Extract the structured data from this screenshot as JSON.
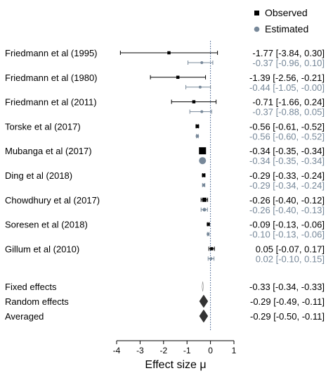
{
  "legend": {
    "observed_label": "Observed",
    "estimated_label": "Estimated",
    "placement": "top-right",
    "observed_color": "#000000",
    "estimated_color": "#778899"
  },
  "chart_data": {
    "type": "forest",
    "xlabel": "Effect size μ",
    "xlim": [
      -4,
      1
    ],
    "x_ticks": [
      -4,
      -3,
      -2,
      -1,
      0,
      1
    ],
    "reference_line_x": 0,
    "reference_line_style": "dotted",
    "grid": false,
    "studies": [
      {
        "label": "Friedmann et al (1995)",
        "observed": {
          "value": -1.77,
          "lower": -3.84,
          "upper": 0.3,
          "text": "-1.77 [-3.84, 0.30]"
        },
        "estimated": {
          "value": -0.37,
          "lower": -0.96,
          "upper": 0.1,
          "text": "-0.37 [-0.96, 0.10]"
        }
      },
      {
        "label": "Friedmann et al (1980)",
        "observed": {
          "value": -1.39,
          "lower": -2.56,
          "upper": -0.21,
          "text": "-1.39 [-2.56, -0.21]"
        },
        "estimated": {
          "value": -0.44,
          "lower": -1.05,
          "upper": -0.0,
          "text": "-0.44 [-1.05, -0.00]"
        }
      },
      {
        "label": "Friedmann et al (2011)",
        "observed": {
          "value": -0.71,
          "lower": -1.66,
          "upper": 0.24,
          "text": "-0.71 [-1.66, 0.24]"
        },
        "estimated": {
          "value": -0.37,
          "lower": -0.88,
          "upper": 0.05,
          "text": "-0.37 [-0.88, 0.05]"
        }
      },
      {
        "label": "Torske et al (2017)",
        "observed": {
          "value": -0.56,
          "lower": -0.61,
          "upper": -0.52,
          "text": "-0.56 [-0.61, -0.52]"
        },
        "estimated": {
          "value": -0.56,
          "lower": -0.6,
          "upper": -0.52,
          "text": "-0.56 [-0.60, -0.52]"
        }
      },
      {
        "label": "Mubanga et al (2017)",
        "observed": {
          "value": -0.34,
          "lower": -0.35,
          "upper": -0.34,
          "text": "-0.34 [-0.35, -0.34]"
        },
        "estimated": {
          "value": -0.34,
          "lower": -0.35,
          "upper": -0.34,
          "text": "-0.34 [-0.35, -0.34]"
        }
      },
      {
        "label": "Ding et al (2018)",
        "observed": {
          "value": -0.29,
          "lower": -0.33,
          "upper": -0.24,
          "text": "-0.29 [-0.33, -0.24]"
        },
        "estimated": {
          "value": -0.29,
          "lower": -0.34,
          "upper": -0.24,
          "text": "-0.29 [-0.34, -0.24]"
        }
      },
      {
        "label": "Chowdhury et al (2017)",
        "observed": {
          "value": -0.26,
          "lower": -0.4,
          "upper": -0.12,
          "text": "-0.26 [-0.40, -0.12]"
        },
        "estimated": {
          "value": -0.26,
          "lower": -0.4,
          "upper": -0.13,
          "text": "-0.26 [-0.40, -0.13]"
        }
      },
      {
        "label": "Soresen et al (2018)",
        "observed": {
          "value": -0.09,
          "lower": -0.13,
          "upper": -0.06,
          "text": "-0.09 [-0.13, -0.06]"
        },
        "estimated": {
          "value": -0.1,
          "lower": -0.13,
          "upper": -0.06,
          "text": "-0.10 [-0.13, -0.06]"
        }
      },
      {
        "label": "Gillum et al (2010)",
        "observed": {
          "value": 0.05,
          "lower": -0.07,
          "upper": 0.17,
          "text": "0.05 [-0.07, 0.17]"
        },
        "estimated": {
          "value": 0.02,
          "lower": -0.1,
          "upper": 0.15,
          "text": "0.02 [-0.10, 0.15]"
        }
      }
    ],
    "summaries": [
      {
        "label": "Fixed effects",
        "value": -0.33,
        "lower": -0.34,
        "upper": -0.33,
        "text": "-0.33 [-0.34, -0.33]"
      },
      {
        "label": "Random effects",
        "value": -0.29,
        "lower": -0.49,
        "upper": -0.11,
        "text": "-0.29 [-0.49, -0.11]"
      },
      {
        "label": "Averaged",
        "value": -0.29,
        "lower": -0.5,
        "upper": -0.11,
        "text": "-0.29 [-0.50, -0.11]"
      }
    ]
  }
}
